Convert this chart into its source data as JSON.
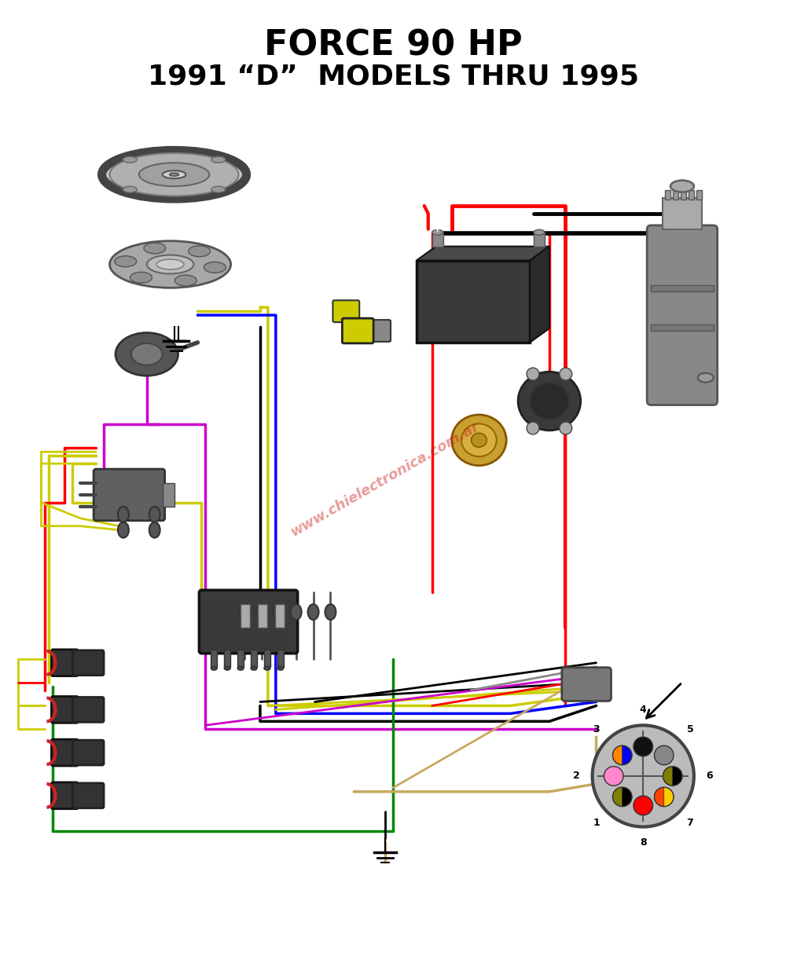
{
  "title_line1": "FORCE 90 HP",
  "title_line2": "1991 “D”  MODELS THRU 1995",
  "bg_color": "#ffffff",
  "title_color": "#000000",
  "title_fontsize1": 32,
  "title_fontsize2": 26,
  "watermark": "www.chielectronica.com.ar",
  "watermark_color": "#cc2222",
  "watermark_alpha": 0.45,
  "fig_width": 10.0,
  "fig_height": 12.31,
  "dpi": 100
}
